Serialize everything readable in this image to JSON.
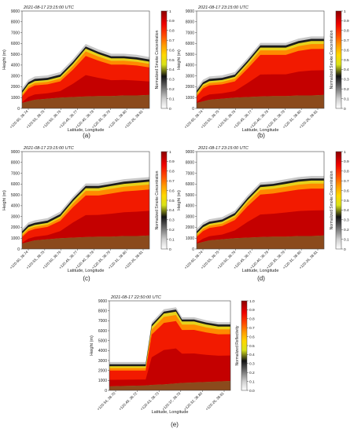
{
  "panels": [
    {
      "title": "2021-08-17 23:15:00 UTC",
      "panel_label": "(a)",
      "xlabel": "Latitude, Longitude",
      "ylabel": "Height (m)",
      "colorbar_label": "Normalized Smoke Concentration"
    },
    {
      "title": "2021-08-17 23:15:00 UTC",
      "panel_label": "(b)",
      "xlabel": "Latitude, Longitude",
      "ylabel": "Height (m)",
      "colorbar_label": "Normalized Smoke Concentration"
    },
    {
      "title": "2021-08-17 23:15:00 UTC",
      "panel_label": "(c)",
      "xlabel": "Latitude, Longitude",
      "ylabel": "Height (m)",
      "colorbar_label": "Normalized Smoke Concentration"
    },
    {
      "title": "2021-08-17 23:15:00 UTC",
      "panel_label": "(d)",
      "xlabel": "Latitude, Longitude",
      "ylabel": "Height (m)",
      "colorbar_label": "Normalized Smoke Concentration"
    },
    {
      "title": "2021-08-17 22:50:00 UTC",
      "panel_label": "(e)",
      "xlabel": "Latitude, Longitude",
      "ylabel": "Height (m)",
      "colorbar_label": "Normalized Reflectivity"
    }
  ],
  "chart_data": [
    {
      "type": "heatmap",
      "panel": "a",
      "title": "2021-08-17 23:15:00 UTC",
      "xlabel": "Latitude, Longitude",
      "ylabel": "Height (m)",
      "x_ticks": [
        "+120.60, 38.74",
        "+120.55, 38.75",
        "+120.50, 38.76",
        "+120.45, 38.77",
        "+120.40, 38.78",
        "+120.35, 38.79",
        "+120.31, 38.80",
        "+120.26, 38.81"
      ],
      "y_ticks": [
        0,
        1000,
        2000,
        3000,
        4000,
        5000,
        6000,
        7000,
        8000,
        9000
      ],
      "ylim": [
        0,
        9000
      ],
      "colorbar_ticks": [
        "0",
        "0.1",
        "0.2",
        "0.3",
        "0.4",
        "0.5",
        "0.6",
        "0.7",
        "0.8",
        "0.9",
        "1"
      ],
      "colorbar_label": "Normalized Smoke Concentration",
      "profile": {
        "x_fraction": [
          0,
          0.05,
          0.1,
          0.2,
          0.3,
          0.4,
          0.5,
          0.6,
          0.7,
          0.8,
          0.9,
          1
        ],
        "top_m": [
          1500,
          2300,
          2600,
          2700,
          3000,
          4200,
          5600,
          5100,
          4700,
          4700,
          4600,
          4400
        ],
        "terrain_m": [
          500,
          650,
          800,
          900,
          1000,
          1050,
          1100,
          1150,
          1150,
          1200,
          1200,
          1250
        ]
      }
    },
    {
      "type": "heatmap",
      "panel": "b",
      "title": "2021-08-17 23:15:00 UTC",
      "xlabel": "Latitude, Longitude",
      "ylabel": "Height (m)",
      "x_ticks": [
        "+120.60, 38.74",
        "+120.55, 38.75",
        "+120.50, 38.76",
        "+120.45, 38.77",
        "+120.40, 38.78",
        "+120.35, 38.79",
        "+120.31, 38.80",
        "+120.26, 38.81"
      ],
      "y_ticks": [
        0,
        1000,
        2000,
        3000,
        4000,
        5000,
        6000,
        7000,
        8000,
        9000
      ],
      "ylim": [
        0,
        9000
      ],
      "colorbar_ticks": [
        "0",
        "0.1",
        "0.2",
        "0.3",
        "0.4",
        "0.5",
        "0.6",
        "0.7",
        "0.8",
        "0.9",
        "1"
      ],
      "colorbar_label": "Normalized Smoke Concentration",
      "profile": {
        "x_fraction": [
          0,
          0.05,
          0.1,
          0.2,
          0.3,
          0.4,
          0.5,
          0.6,
          0.7,
          0.8,
          0.9,
          1
        ],
        "top_m": [
          1500,
          2300,
          2600,
          2700,
          3000,
          4300,
          5700,
          5700,
          5700,
          6100,
          6300,
          6300
        ],
        "terrain_m": [
          500,
          650,
          800,
          900,
          1000,
          1050,
          1100,
          1150,
          1150,
          1200,
          1200,
          1250
        ]
      }
    },
    {
      "type": "heatmap",
      "panel": "c",
      "title": "2021-08-17 23:15:00 UTC",
      "xlabel": "Latitude, Longitude",
      "ylabel": "Height (m)",
      "x_ticks": [
        "+120.60, 38.74",
        "+120.55, 38.75",
        "+120.50, 38.76",
        "+120.45, 38.77",
        "+120.40, 38.78",
        "+120.35, 38.79",
        "+120.31, 38.80",
        "+120.26, 38.81"
      ],
      "y_ticks": [
        0,
        1000,
        2000,
        3000,
        4000,
        5000,
        6000,
        7000,
        8000,
        9000
      ],
      "ylim": [
        0,
        9000
      ],
      "colorbar_ticks": [
        "0",
        "0.1",
        "0.2",
        "0.3",
        "0.4",
        "0.5",
        "0.6",
        "0.7",
        "0.8",
        "0.9",
        "1"
      ],
      "colorbar_label": "Normalized Smoke Concentration",
      "profile": {
        "x_fraction": [
          0,
          0.05,
          0.1,
          0.2,
          0.3,
          0.4,
          0.5,
          0.6,
          0.7,
          0.8,
          0.9,
          1
        ],
        "top_m": [
          1500,
          2100,
          2300,
          2500,
          3100,
          4500,
          5700,
          5700,
          5900,
          6100,
          6200,
          6300
        ],
        "terrain_m": [
          500,
          650,
          800,
          900,
          1000,
          1050,
          1100,
          1150,
          1150,
          1200,
          1200,
          1250
        ]
      }
    },
    {
      "type": "heatmap",
      "panel": "d",
      "title": "2021-08-17 23:15:00 UTC",
      "xlabel": "Latitude, Longitude",
      "ylabel": "Height (m)",
      "x_ticks": [
        "+120.60, 38.74",
        "+120.55, 38.75",
        "+120.50, 38.76",
        "+120.45, 38.77",
        "+120.40, 38.78",
        "+120.35, 38.79",
        "+120.31, 38.80",
        "+120.26, 38.81"
      ],
      "y_ticks": [
        0,
        1000,
        2000,
        3000,
        4000,
        5000,
        6000,
        7000,
        8000,
        9000
      ],
      "ylim": [
        0,
        9000
      ],
      "colorbar_ticks": [
        "0",
        "0.1",
        "0.2",
        "0.3",
        "0.4",
        "0.5",
        "0.6",
        "0.7",
        "0.8",
        "0.9",
        "1"
      ],
      "colorbar_label": "Normalized Smoke Concentration",
      "profile": {
        "x_fraction": [
          0,
          0.05,
          0.1,
          0.2,
          0.3,
          0.4,
          0.5,
          0.6,
          0.7,
          0.8,
          0.9,
          1
        ],
        "top_m": [
          1500,
          2100,
          2400,
          2600,
          3200,
          4600,
          5800,
          5900,
          6100,
          6300,
          6400,
          6400
        ],
        "terrain_m": [
          500,
          650,
          800,
          900,
          1000,
          1050,
          1100,
          1150,
          1150,
          1200,
          1200,
          1250
        ]
      }
    },
    {
      "type": "heatmap",
      "panel": "e",
      "title": "2021-08-17 22:50:00 UTC",
      "xlabel": "Latitude, Longitude",
      "ylabel": "Height (m)",
      "x_ticks": [
        "+120.54, 38.70",
        "+120.49, 38.72",
        "+120.43, 38.73",
        "+120.37, 38.79",
        "+120.32, 38.80",
        "+120.26, 38.81"
      ],
      "y_ticks": [
        0,
        1000,
        2000,
        3000,
        4000,
        5000,
        6000,
        7000,
        8000,
        9000
      ],
      "ylim": [
        0,
        9000
      ],
      "colorbar_ticks": [
        "0.0",
        "0.1",
        "0.2",
        "0.3",
        "0.4",
        "0.5",
        "0.6",
        "0.7",
        "0.8",
        "0.9",
        "1.0"
      ],
      "colorbar_label": "Normalized Reflectivity",
      "profile": {
        "x_fraction": [
          0,
          0.15,
          0.3,
          0.35,
          0.45,
          0.55,
          0.6,
          0.7,
          0.8,
          0.9,
          1
        ],
        "top_m": [
          2500,
          2500,
          2500,
          6500,
          7800,
          8000,
          7000,
          7000,
          6700,
          6500,
          6500
        ],
        "terrain_m": [
          400,
          450,
          500,
          550,
          600,
          700,
          750,
          800,
          850,
          900,
          950
        ]
      }
    }
  ]
}
